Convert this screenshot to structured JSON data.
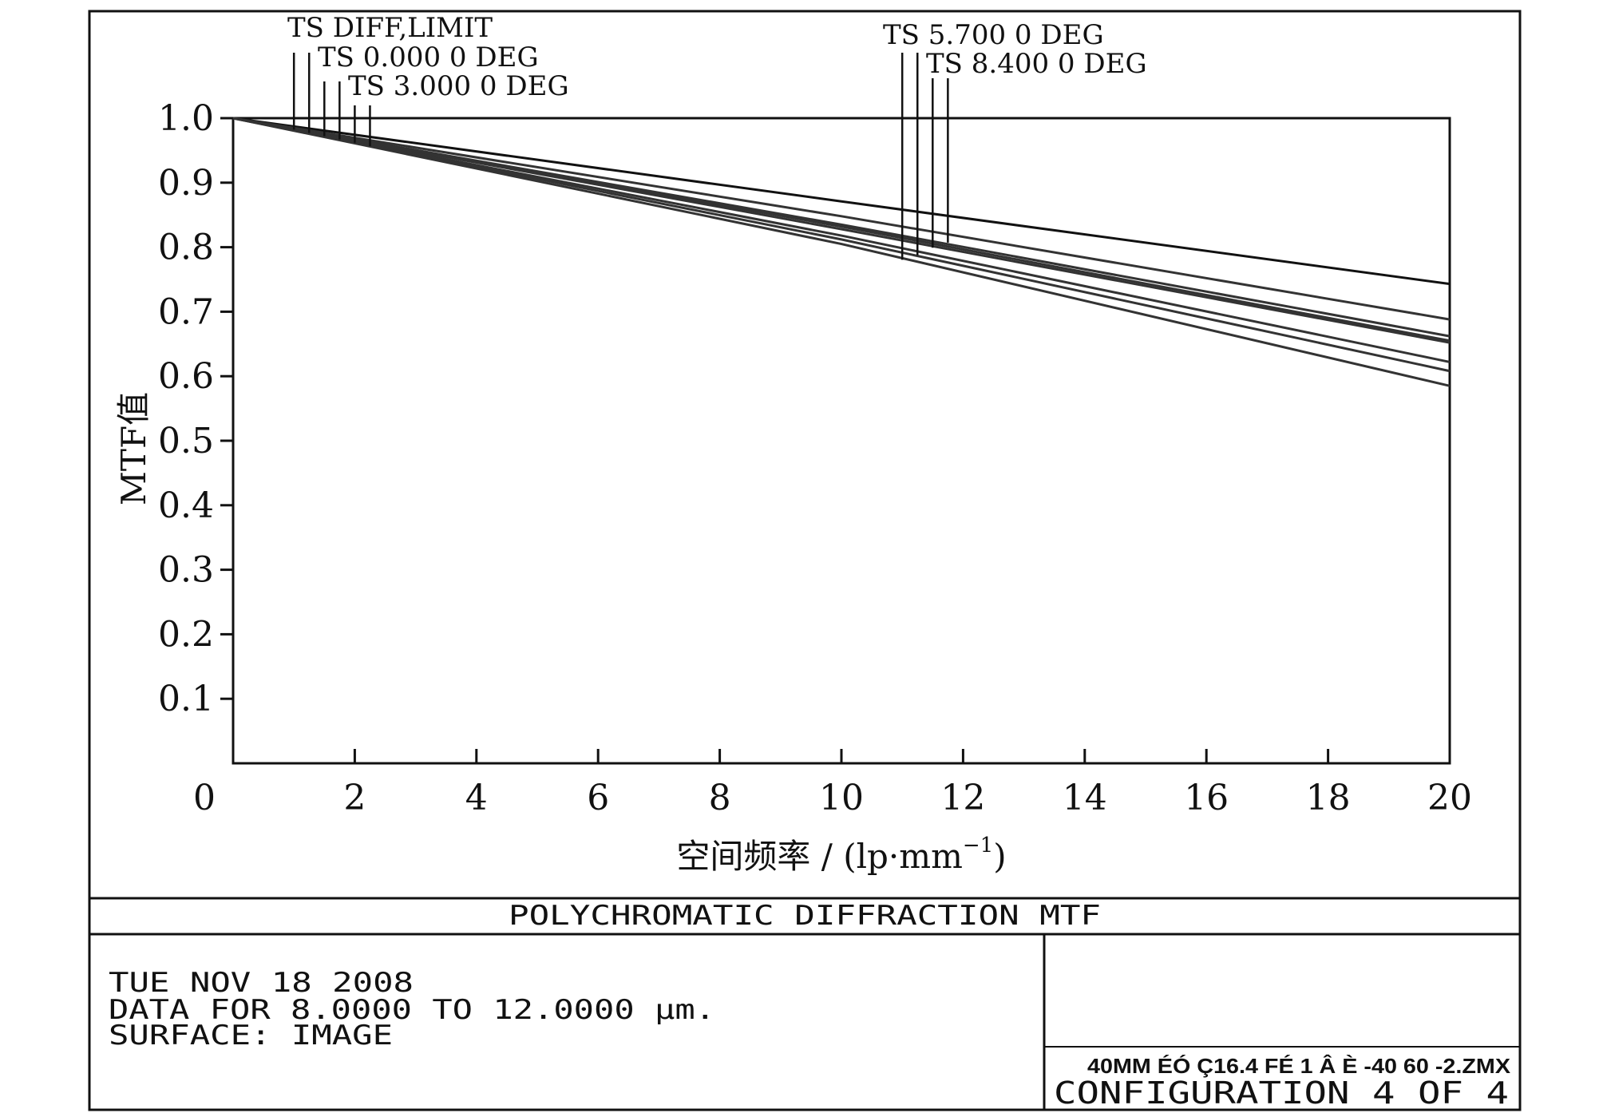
{
  "chart_data": {
    "type": "line",
    "title": "POLYCHROMATIC DIFFRACTION MTF",
    "xlabel": "空间频率 / (lp·mm",
    "xlabel_sup": "−1",
    "xlabel_close": ")",
    "ylabel": "MTF值",
    "xlim": [
      0,
      20
    ],
    "ylim": [
      0,
      1
    ],
    "x_ticks": [
      0,
      2,
      4,
      6,
      8,
      10,
      12,
      14,
      16,
      18,
      20
    ],
    "x_tick_labels": [
      "0",
      "2",
      "4",
      "6",
      "8",
      "10",
      "12",
      "14",
      "16",
      "18",
      "20"
    ],
    "y_ticks": [
      0.1,
      0.2,
      0.3,
      0.4,
      0.5,
      0.6,
      0.7,
      0.8,
      0.9,
      1.0
    ],
    "y_tick_labels": [
      "0.1",
      "0.2",
      "0.3",
      "0.4",
      "0.5",
      "0.6",
      "0.7",
      "0.8",
      "0.9",
      "1.0"
    ],
    "grid": false,
    "legend_labels": [
      "TS DIFF,LIMIT",
      "TS 0.000 0 DEG",
      "TS 3.000 0 DEG",
      "TS 5.700 0 DEG",
      "TS 8.400 0 DEG"
    ],
    "series": [
      {
        "name": "TS DIFF,LIMIT",
        "x": [
          0,
          10,
          20
        ],
        "y": [
          1.0,
          0.871,
          0.743
        ]
      },
      {
        "name": "TS DIFF,LIMIT",
        "x": [
          0,
          10,
          20
        ],
        "y": [
          1.0,
          0.848,
          0.688
        ]
      },
      {
        "name": "TS 0.000 0 DEG",
        "x": [
          0,
          10,
          20
        ],
        "y": [
          1.0,
          0.835,
          0.662
        ]
      },
      {
        "name": "TS 0.000 0 DEG",
        "x": [
          0,
          10,
          20
        ],
        "y": [
          1.0,
          0.832,
          0.655
        ]
      },
      {
        "name": "TS 3.000 0 DEG",
        "x": [
          0,
          10,
          20
        ],
        "y": [
          1.0,
          0.828,
          0.652
        ]
      },
      {
        "name": "TS 5.700 0 DEG",
        "x": [
          0,
          10,
          20
        ],
        "y": [
          1.0,
          0.818,
          0.622
        ]
      },
      {
        "name": "TS 5.700 0 DEG",
        "x": [
          0,
          10,
          20
        ],
        "y": [
          1.0,
          0.812,
          0.608
        ]
      },
      {
        "name": "TS 8.400 0 DEG",
        "x": [
          0,
          10,
          20
        ],
        "y": [
          1.0,
          0.805,
          0.585
        ]
      }
    ],
    "leader_lines": {
      "left_x": [
        1.0,
        1.25,
        1.5,
        1.75,
        2.0,
        2.25
      ],
      "right_x": [
        11.0,
        11.25,
        11.5,
        11.75
      ]
    },
    "line_color": "#333333"
  },
  "info": {
    "date": "TUE NOV 18 2008",
    "data_for": "DATA FOR 8.0000 TO 12.0000 μm.",
    "surface": "SURFACE: IMAGE",
    "file_line": "40MM ÉÓ Ç16.4 FÉ 1 Â È  -40  60 -2.ZMX",
    "configuration": "CONFIGURATION 4 OF 4"
  }
}
